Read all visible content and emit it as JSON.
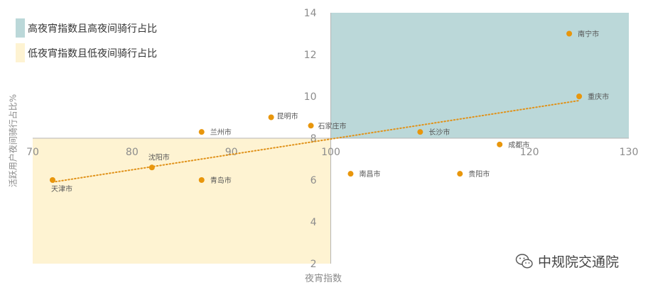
{
  "chart_data": {
    "type": "scatter",
    "xlabel": "夜宵指数",
    "ylabel": "活跃用户夜间骑行占比%",
    "xlim": [
      70,
      130
    ],
    "ylim": [
      2,
      14
    ],
    "x_ticks": [
      "70",
      "80",
      "90",
      "100",
      "120",
      "130"
    ],
    "y_ticks": [
      "14",
      "12",
      "10",
      "8",
      "6",
      "4",
      "2"
    ],
    "x_axis_crosses_y": 8,
    "y_axis_crosses_x": 100,
    "regions": [
      {
        "label": "高夜宵指数且高夜间骑行占比",
        "color": "#bbd8d9",
        "x": [
          100,
          130
        ],
        "y": [
          8,
          14
        ]
      },
      {
        "label": "低夜宵指数且低夜间骑行占比",
        "color": "#fef3d2",
        "x": [
          70,
          100
        ],
        "y": [
          2,
          8
        ]
      }
    ],
    "points": [
      {
        "name": "南宁市",
        "x": 124,
        "y": 13.0
      },
      {
        "name": "重庆市",
        "x": 125,
        "y": 10.0
      },
      {
        "name": "昆明市",
        "x": 94,
        "y": 9.0
      },
      {
        "name": "兰州市",
        "x": 87,
        "y": 8.3
      },
      {
        "name": "石家庄市",
        "x": 98,
        "y": 8.6
      },
      {
        "name": "长沙市",
        "x": 109,
        "y": 8.3
      },
      {
        "name": "成都市",
        "x": 117,
        "y": 7.7
      },
      {
        "name": "沈阳市",
        "x": 82,
        "y": 6.6
      },
      {
        "name": "青岛市",
        "x": 87,
        "y": 6.0
      },
      {
        "name": "天津市",
        "x": 72,
        "y": 6.0
      },
      {
        "name": "南昌市",
        "x": 102,
        "y": 6.3
      },
      {
        "name": "贵阳市",
        "x": 113,
        "y": 6.3
      }
    ],
    "trendline": {
      "x": [
        72,
        125
      ],
      "y": [
        5.9,
        9.8
      ],
      "color": "#e0921a",
      "style": "dotted"
    },
    "point_color": "#e8960c"
  },
  "watermark": {
    "text": "中规院交通院",
    "icon": "wechat-icon"
  }
}
